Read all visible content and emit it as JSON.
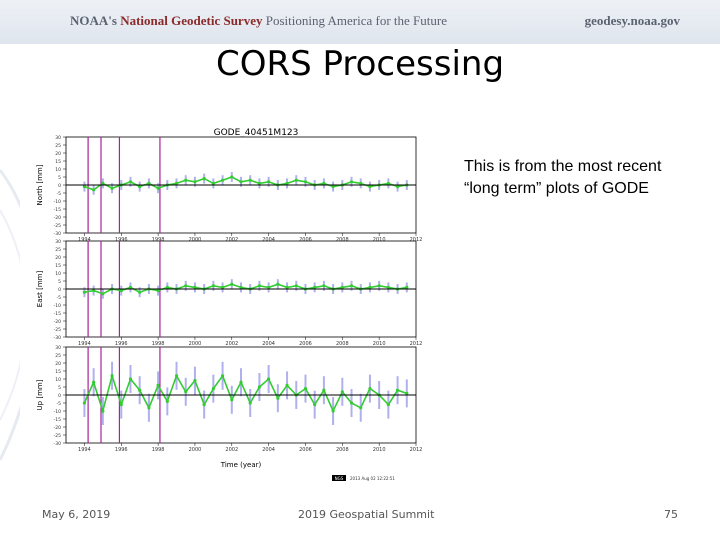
{
  "header": {
    "org_prefix": "NOAA's ",
    "org_name": "National Geodetic Survey",
    "tagline": " Positioning America for the Future",
    "site": "geodesy.noaa.gov"
  },
  "slide": {
    "title": "CORS Processing",
    "note_line1": "This is from the most recent",
    "note_line2": "“long term” plots of GODE"
  },
  "footer": {
    "date": "May 6, 2019",
    "event": "2019 Geospatial Summit",
    "page": "75"
  },
  "colors": {
    "series": "#33cc33",
    "error_bars": "#b0b0ee",
    "event_lines": "#aa2299",
    "zero_line": "#000000"
  },
  "chart_data": {
    "type": "scatter",
    "title": "GODE_40451M123",
    "xlabel": "Time (year)",
    "x_ticks": [
      1994,
      1996,
      1998,
      2000,
      2002,
      2004,
      2006,
      2008,
      2010,
      2012
    ],
    "xlim": [
      1993,
      2012
    ],
    "event_lines_x": [
      1994.2,
      1994.9,
      1995.9,
      1998.1
    ],
    "footnote_badge": "NGS",
    "footnote": "2013 Aug 02 12:22:51",
    "panels": [
      {
        "ylabel": "North [mm]",
        "y_ticks": [
          30,
          25,
          20,
          15,
          10,
          5,
          0,
          -5,
          -10,
          -15,
          -20,
          -25,
          -30
        ],
        "ylim": [
          -30,
          30
        ],
        "series": {
          "x": [
            1994.0,
            1994.5,
            1995.0,
            1995.5,
            1996.0,
            1996.5,
            1997.0,
            1997.5,
            1998.0,
            1998.5,
            1999.0,
            1999.5,
            2000.0,
            2000.5,
            2001.0,
            2001.5,
            2002.0,
            2002.5,
            2003.0,
            2003.5,
            2004.0,
            2004.5,
            2005.0,
            2005.5,
            2006.0,
            2006.5,
            2007.0,
            2007.5,
            2008.0,
            2008.5,
            2009.0,
            2009.5,
            2010.0,
            2010.5,
            2011.0,
            2011.5
          ],
          "y": [
            -1,
            -3,
            1,
            -2,
            0,
            2,
            -1,
            1,
            -2,
            0,
            1,
            3,
            2,
            4,
            1,
            3,
            5,
            2,
            3,
            1,
            2,
            0,
            1,
            3,
            2,
            0,
            1,
            -1,
            0,
            2,
            1,
            -1,
            0,
            1,
            -1,
            0
          ]
        }
      },
      {
        "ylabel": "East [mm]",
        "y_ticks": [
          30,
          25,
          20,
          15,
          10,
          5,
          0,
          -5,
          -10,
          -15,
          -20,
          -25,
          -30
        ],
        "ylim": [
          -30,
          30
        ],
        "series": {
          "x": [
            1994.0,
            1994.5,
            1995.0,
            1995.5,
            1996.0,
            1996.5,
            1997.0,
            1997.5,
            1998.0,
            1998.5,
            1999.0,
            1999.5,
            2000.0,
            2000.5,
            2001.0,
            2001.5,
            2002.0,
            2002.5,
            2003.0,
            2003.5,
            2004.0,
            2004.5,
            2005.0,
            2005.5,
            2006.0,
            2006.5,
            2007.0,
            2007.5,
            2008.0,
            2008.5,
            2009.0,
            2009.5,
            2010.0,
            2010.5,
            2011.0,
            2011.5
          ],
          "y": [
            -2,
            -1,
            -3,
            0,
            -1,
            1,
            -2,
            0,
            -1,
            1,
            0,
            2,
            1,
            0,
            2,
            1,
            3,
            1,
            0,
            2,
            1,
            3,
            1,
            2,
            0,
            1,
            2,
            0,
            1,
            2,
            0,
            1,
            2,
            1,
            0,
            1
          ]
        }
      },
      {
        "ylabel": "Up [mm]",
        "y_ticks": [
          30,
          25,
          20,
          15,
          10,
          5,
          0,
          -5,
          -10,
          -15,
          -20,
          -25,
          -30
        ],
        "ylim": [
          -30,
          30
        ],
        "series": {
          "x": [
            1994.0,
            1994.5,
            1995.0,
            1995.5,
            1996.0,
            1996.5,
            1997.0,
            1997.5,
            1998.0,
            1998.5,
            1999.0,
            1999.5,
            2000.0,
            2000.5,
            2001.0,
            2001.5,
            2002.0,
            2002.5,
            2003.0,
            2003.5,
            2004.0,
            2004.5,
            2005.0,
            2005.5,
            2006.0,
            2006.5,
            2007.0,
            2007.5,
            2008.0,
            2008.5,
            2009.0,
            2009.5,
            2010.0,
            2010.5,
            2011.0,
            2011.5
          ],
          "y": [
            -5,
            8,
            -10,
            12,
            -6,
            10,
            3,
            -8,
            6,
            -4,
            12,
            2,
            9,
            -6,
            4,
            12,
            -3,
            8,
            -5,
            5,
            10,
            -2,
            6,
            0,
            4,
            -6,
            3,
            -10,
            2,
            -5,
            -8,
            4,
            0,
            -6,
            3,
            1
          ]
        }
      }
    ]
  }
}
